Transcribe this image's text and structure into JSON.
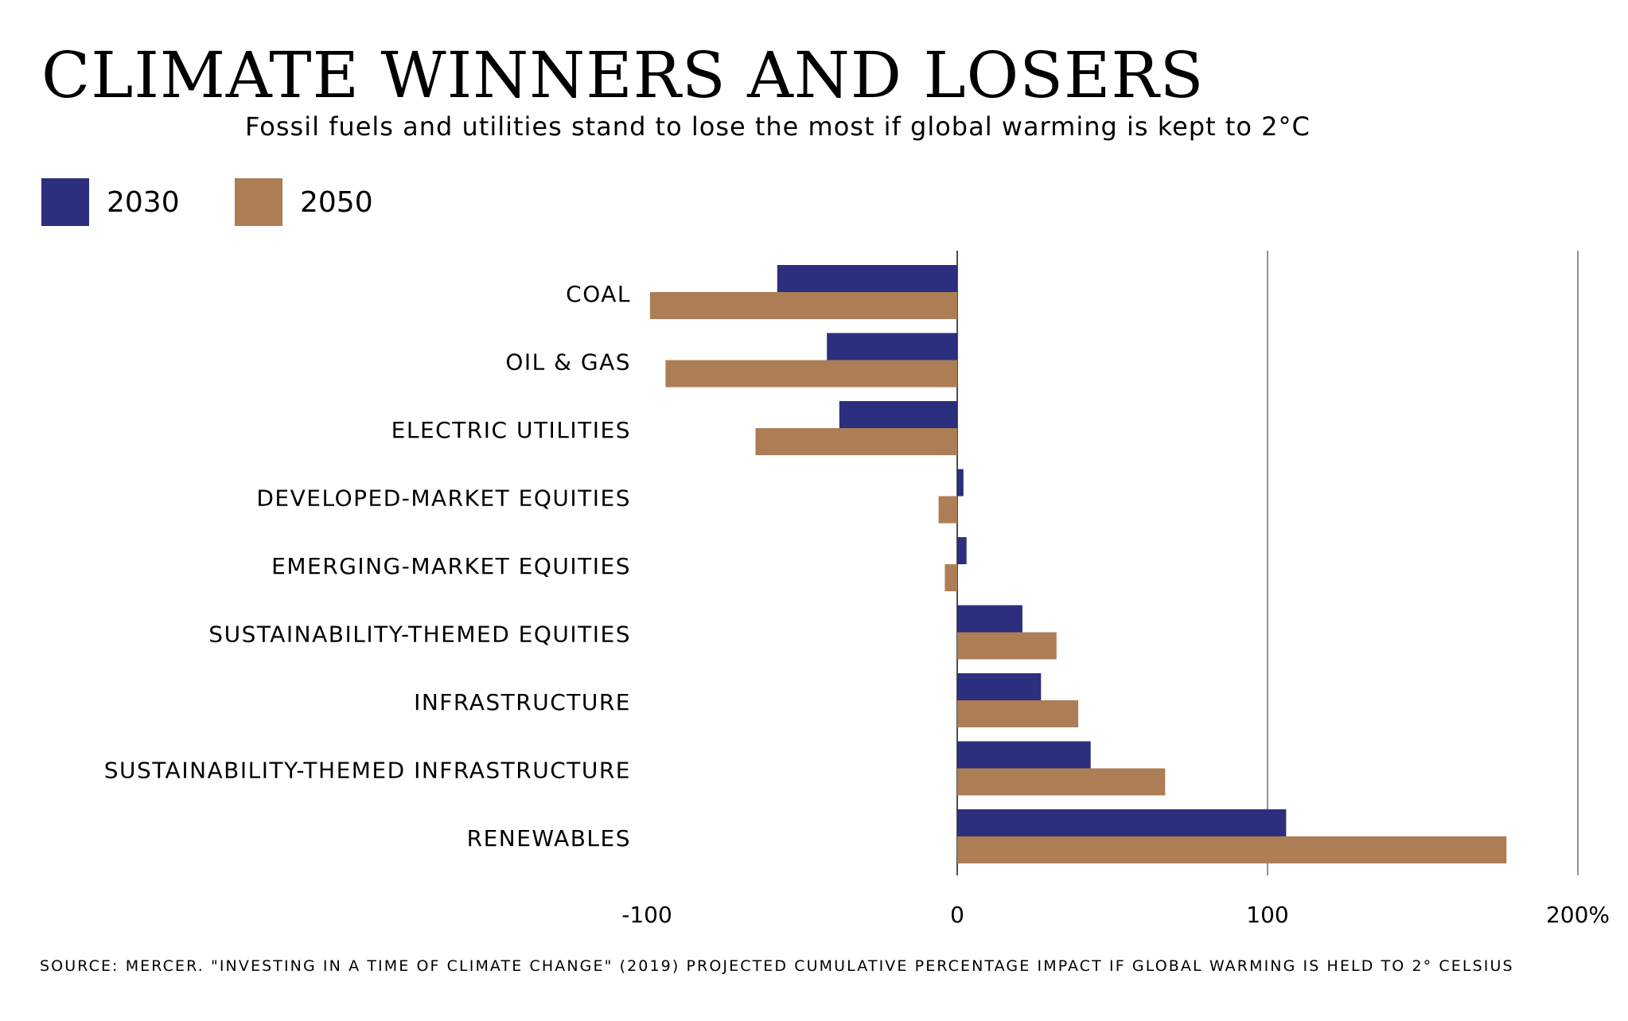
{
  "header": {
    "title": "CLIMATE WINNERS AND LOSERS",
    "subtitle": "Fossil fuels and utilities stand to lose the most if global warming is kept to 2°C"
  },
  "legend": [
    {
      "label": "2030",
      "color": "#2b2f7e"
    },
    {
      "label": "2050",
      "color": "#ad7d55"
    }
  ],
  "chart_data": {
    "type": "bar",
    "orientation": "horizontal",
    "title": "CLIMATE WINNERS AND LOSERS",
    "subtitle": "Fossil fuels and utilities stand to lose the most if global warming is kept to 2°C",
    "xlabel": "",
    "ylabel": "",
    "xlim": [
      -100,
      200
    ],
    "tick_values": [
      -100,
      0,
      100,
      200
    ],
    "tick_labels": [
      "-100",
      "0",
      "100",
      "200%"
    ],
    "gridlines_at": [
      0,
      100,
      200
    ],
    "legend_position": "top-left",
    "categories": [
      "COAL",
      "OIL & GAS",
      "ELECTRIC UTILITIES",
      "DEVELOPED-MARKET EQUITIES",
      "EMERGING-MARKET EQUITIES",
      "SUSTAINABILITY-THEMED EQUITIES",
      "INFRASTRUCTURE",
      "SUSTAINABILITY-THEMED INFRASTRUCTURE",
      "RENEWABLES"
    ],
    "series": [
      {
        "name": "2030",
        "color": "#2b2f7e",
        "values": [
          -58,
          -42,
          -38,
          2,
          3,
          21,
          27,
          43,
          106
        ]
      },
      {
        "name": "2050",
        "color": "#ad7d55",
        "values": [
          -99,
          -94,
          -65,
          -6,
          -4,
          32,
          39,
          67,
          177
        ]
      }
    ]
  },
  "footer": {
    "source": "SOURCE: MERCER. \"INVESTING IN A TIME OF CLIMATE CHANGE\" (2019) PROJECTED CUMULATIVE PERCENTAGE IMPACT IF GLOBAL WARMING IS HELD TO 2° CELSIUS"
  }
}
